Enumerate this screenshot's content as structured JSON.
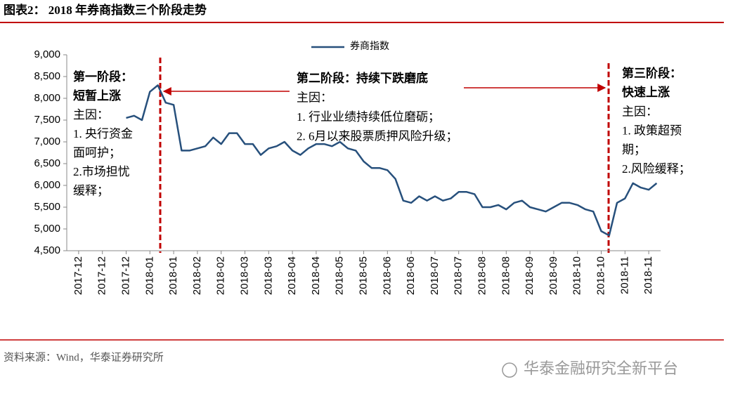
{
  "chart_data": {
    "type": "line",
    "title": "图表2： 2018 年券商指数三个阶段走势",
    "source": "资料来源：Wind，华泰证券研究所",
    "watermark": "华泰金融研究全新平台",
    "categories": [
      null,
      "2017-12",
      null,
      null,
      "2017-12",
      null,
      null,
      "2017-12",
      null,
      null,
      "2018-01",
      null,
      null,
      "2018-01",
      null,
      null,
      "2018-02",
      null,
      null,
      "2018-02",
      null,
      null,
      "2018-03",
      null,
      null,
      "2018-03",
      null,
      null,
      "2018-04",
      null,
      null,
      "2018-04",
      null,
      null,
      "2018-05",
      null,
      null,
      "2018-05",
      null,
      null,
      "2018-06",
      null,
      null,
      "2018-06",
      null,
      null,
      "2018-07",
      null,
      null,
      "2018-07",
      null,
      null,
      "2018-08",
      null,
      null,
      "2018-08",
      null,
      null,
      "2018-09",
      null,
      null,
      "2018-09",
      null,
      null,
      "2018-10",
      null,
      null,
      "2018-10",
      null,
      null,
      "2018-11",
      null,
      null,
      "2018-11",
      null
    ],
    "series": [
      {
        "name": "券商指数",
        "color": "#27507c",
        "values": [
          null,
          null,
          null,
          null,
          null,
          null,
          null,
          7550,
          7600,
          7500,
          8150,
          8300,
          7900,
          7850,
          6800,
          6800,
          6850,
          6900,
          7100,
          6950,
          7200,
          7200,
          6950,
          6950,
          6700,
          6850,
          6900,
          7000,
          6800,
          6700,
          6850,
          6950,
          6950,
          6900,
          7000,
          6850,
          6800,
          6550,
          6400,
          6400,
          6350,
          6150,
          5650,
          5600,
          5750,
          5650,
          5750,
          5650,
          5700,
          5850,
          5850,
          5800,
          5500,
          5500,
          5550,
          5450,
          5600,
          5650,
          5500,
          5450,
          5400,
          5500,
          5600,
          5600,
          5550,
          5450,
          5400,
          4950,
          4850,
          5600,
          5700,
          6050,
          5950,
          5900,
          6050
        ]
      }
    ],
    "ylim": [
      4500,
      9000
    ],
    "yticks": [
      {
        "value": 4500,
        "label": "4,500"
      },
      {
        "value": 5000,
        "label": "5,000"
      },
      {
        "value": 5500,
        "label": "5,500"
      },
      {
        "value": 6000,
        "label": "6,000"
      },
      {
        "value": 6500,
        "label": "6,500"
      },
      {
        "value": 7000,
        "label": "7,000"
      },
      {
        "value": 7500,
        "label": "7,500"
      },
      {
        "value": 8000,
        "label": "8,000"
      },
      {
        "value": 8500,
        "label": "8,500"
      },
      {
        "value": 9000,
        "label": "9,000"
      }
    ],
    "legend": "top",
    "annotations": [
      {
        "lines": [
          "第一阶段：",
          "短暂上涨",
          "主因：",
          "1. 央行资金",
          "面呵护；",
          "2.市场担忧",
          "缓释；"
        ]
      },
      {
        "lines": [
          "第二阶段：持续下跌磨底",
          "主因：",
          "1. 行业业绩持续低位磨砺；",
          "2. 6月以来股票质押风险升级；"
        ]
      },
      {
        "lines": [
          "第三阶段：",
          "快速上涨",
          "主因：",
          "1. 政策超预",
          "期；",
          "2.风险缓释；"
        ]
      }
    ]
  }
}
